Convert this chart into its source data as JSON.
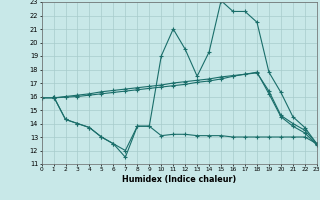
{
  "xlabel": "Humidex (Indice chaleur)",
  "xlim": [
    0,
    23
  ],
  "ylim": [
    11,
    23
  ],
  "yticks": [
    11,
    12,
    13,
    14,
    15,
    16,
    17,
    18,
    19,
    20,
    21,
    22,
    23
  ],
  "xticks": [
    0,
    1,
    2,
    3,
    4,
    5,
    6,
    7,
    8,
    9,
    10,
    11,
    12,
    13,
    14,
    15,
    16,
    17,
    18,
    19,
    20,
    21,
    22,
    23
  ],
  "bg_color": "#c8e8e8",
  "line_color": "#1a6e6a",
  "grid_color": "#a8cccc",
  "line_peak_x": [
    1,
    2,
    3,
    4,
    5,
    6,
    7,
    8,
    9,
    10,
    11,
    12,
    13,
    14,
    15,
    16,
    17,
    18,
    19,
    20,
    21,
    22,
    23
  ],
  "line_peak_y": [
    16.0,
    14.3,
    14.0,
    13.7,
    13.0,
    12.5,
    11.5,
    13.8,
    13.8,
    19.0,
    21.0,
    19.5,
    17.5,
    19.3,
    23.1,
    22.3,
    22.3,
    21.5,
    17.8,
    16.3,
    14.5,
    13.7,
    12.5
  ],
  "line_upper1_x": [
    0,
    1,
    2,
    3,
    4,
    5,
    6,
    7,
    8,
    9,
    10,
    11,
    12,
    13,
    14,
    15,
    16,
    17,
    18,
    19,
    20,
    21,
    22,
    23
  ],
  "line_upper1_y": [
    15.9,
    15.9,
    16.0,
    16.1,
    16.2,
    16.35,
    16.45,
    16.55,
    16.65,
    16.75,
    16.85,
    17.0,
    17.1,
    17.2,
    17.3,
    17.45,
    17.55,
    17.65,
    17.75,
    16.4,
    14.6,
    14.0,
    13.5,
    12.5
  ],
  "line_upper2_x": [
    0,
    1,
    2,
    3,
    4,
    5,
    6,
    7,
    8,
    9,
    10,
    11,
    12,
    13,
    14,
    15,
    16,
    17,
    18,
    19,
    20,
    21,
    22,
    23
  ],
  "line_upper2_y": [
    15.9,
    15.9,
    15.95,
    16.0,
    16.1,
    16.2,
    16.3,
    16.4,
    16.5,
    16.6,
    16.7,
    16.8,
    16.9,
    17.05,
    17.15,
    17.3,
    17.5,
    17.65,
    17.8,
    16.2,
    14.5,
    13.8,
    13.3,
    12.4
  ],
  "line_bottom_x": [
    1,
    2,
    3,
    4,
    5,
    6,
    7,
    8,
    9,
    10,
    11,
    12,
    13,
    14,
    15,
    16,
    17,
    18,
    19,
    20,
    21,
    22,
    23
  ],
  "line_bottom_y": [
    16.0,
    14.3,
    14.0,
    13.7,
    13.0,
    12.5,
    12.0,
    13.8,
    13.8,
    13.1,
    13.2,
    13.2,
    13.1,
    13.1,
    13.1,
    13.0,
    13.0,
    13.0,
    13.0,
    13.0,
    13.0,
    13.0,
    12.5
  ]
}
